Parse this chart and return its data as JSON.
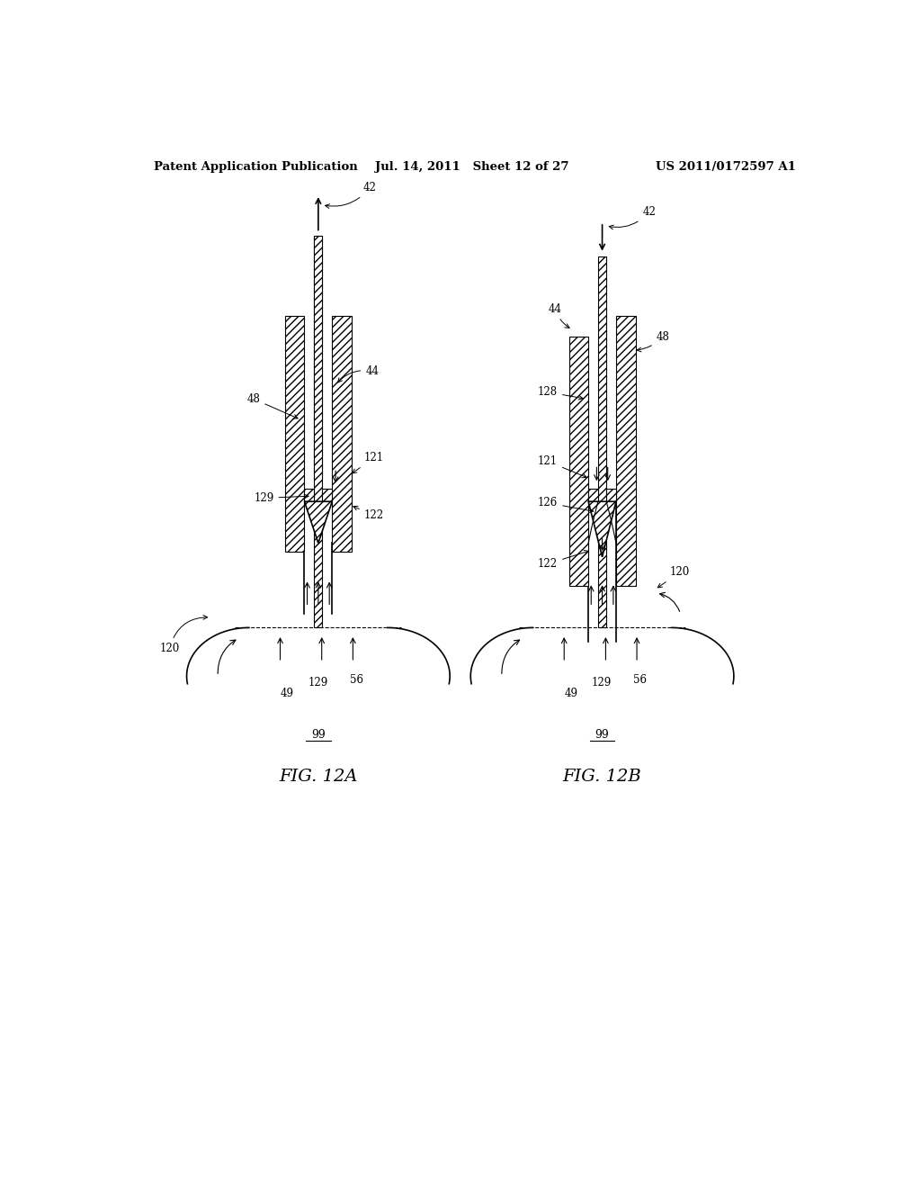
{
  "bg_color": "#ffffff",
  "line_color": "#000000",
  "header_left": "Patent Application Publication",
  "header_mid": "Jul. 14, 2011   Sheet 12 of 27",
  "header_right": "US 2011/0172597 A1",
  "fig_label_a": "FIG. 12A",
  "fig_label_b": "FIG. 12B"
}
